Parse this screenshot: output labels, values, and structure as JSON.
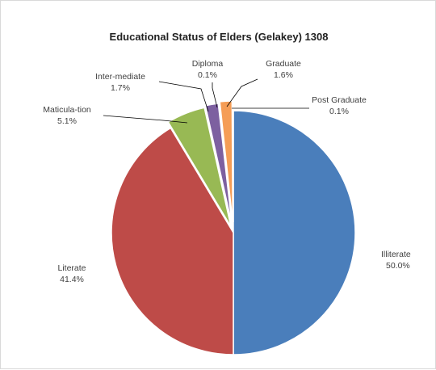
{
  "chart_data": {
    "type": "pie",
    "title": "Educational Status of Elders (Gelakey) 1308",
    "slices": [
      {
        "label": "Illiterate",
        "percent_label": "50.0%",
        "value": 50.0,
        "color": "#4a7ebb"
      },
      {
        "label": "Literate",
        "percent_label": "41.4%",
        "value": 41.4,
        "color": "#be4b48"
      },
      {
        "label": "Maticula-tion",
        "percent_label": "5.1%",
        "value": 5.1,
        "color": "#98b954"
      },
      {
        "label": "Inter-mediate",
        "percent_label": "1.7%",
        "value": 1.7,
        "color": "#7d60a0"
      },
      {
        "label": "Diploma",
        "percent_label": "0.1%",
        "value": 0.1,
        "color": "#46aac5"
      },
      {
        "label": "Graduate",
        "percent_label": "1.6%",
        "value": 1.6,
        "color": "#f59d56"
      },
      {
        "label": "Post Graduate",
        "percent_label": "0.1%",
        "value": 0.1,
        "color": "#a8b7d8"
      }
    ]
  }
}
